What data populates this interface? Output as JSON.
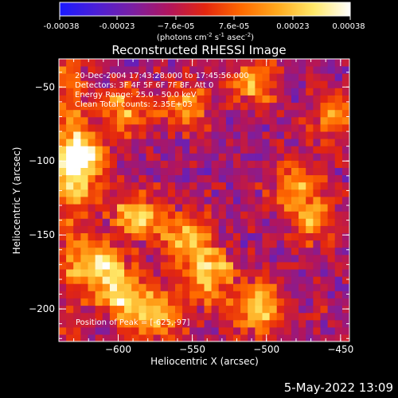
{
  "chart_data": {
    "type": "heatmap",
    "title": "Reconstructed RHESSI Image",
    "xlabel": "Heliocentric X (arcsec)",
    "ylabel": "Heliocentric Y (arcsec)",
    "xlim": [
      -640,
      -444
    ],
    "ylim": [
      -222,
      -31
    ],
    "x_ticks": [
      -600,
      -550,
      -500,
      -450
    ],
    "x_tick_labels": [
      "−600",
      "−550",
      "−500",
      "−450"
    ],
    "y_ticks": [
      -50,
      -100,
      -150,
      -200
    ],
    "y_tick_labels": [
      "−50",
      "−100",
      "−150",
      "−200"
    ],
    "colorbar": {
      "ticks": [
        -0.00038,
        -0.00023,
        -7.6e-05,
        7.6e-05,
        0.00023,
        0.00038
      ],
      "tick_labels": [
        "-0.00038",
        "-0.00023",
        "−7.6e-05",
        "7.6e-05",
        "0.00023",
        "0.00038"
      ],
      "unit_label_text": "(photons cm",
      "unit_sup1": "-2",
      "unit_mid": " s",
      "unit_sup2": "-1",
      "unit_mid2": " asec",
      "unit_sup3": "-2",
      "unit_end": ")",
      "colormap": [
        "#1a1aff",
        "#4b1fd6",
        "#7a1fa3",
        "#b1155e",
        "#e3260f",
        "#ff6a00",
        "#ffaa1e",
        "#ffe96a",
        "#ffffff"
      ]
    },
    "annotations": [
      "20-Dec-2004 17:43:28.000 to 17:45:56.000",
      "Detectors: 3F 4F 5F 6F 7F 8F, Att 0",
      "Energy Range: 25.0 - 50.0 keV",
      "Clean    Total counts: 2.35E+03"
    ],
    "peak_label": "Position of Peak = [-625,-97]",
    "peak": [
      -625,
      -97
    ],
    "peak_value": 0.00038,
    "bright_sources": [
      {
        "x": -625,
        "y": -97,
        "value": 0.00038
      },
      {
        "x": -612,
        "y": -170,
        "value": 0.00028
      },
      {
        "x": -597,
        "y": -192,
        "value": 0.00024
      },
      {
        "x": -575,
        "y": -205,
        "value": 0.00022
      },
      {
        "x": -540,
        "y": -180,
        "value": 0.00022
      },
      {
        "x": -505,
        "y": -200,
        "value": 0.00027
      },
      {
        "x": -508,
        "y": -46,
        "value": 0.0002
      },
      {
        "x": -555,
        "y": -63,
        "value": 0.00016
      },
      {
        "x": -595,
        "y": -65,
        "value": 0.00018
      },
      {
        "x": -550,
        "y": -150,
        "value": 0.00018
      },
      {
        "x": -585,
        "y": -135,
        "value": 0.00017
      },
      {
        "x": -480,
        "y": -115,
        "value": 0.00016
      },
      {
        "x": -470,
        "y": -140,
        "value": 0.00015
      },
      {
        "x": -455,
        "y": -70,
        "value": 0.00013
      }
    ],
    "grid": false
  },
  "footer": {
    "date_stamp": "5-May-2022 13:09"
  }
}
